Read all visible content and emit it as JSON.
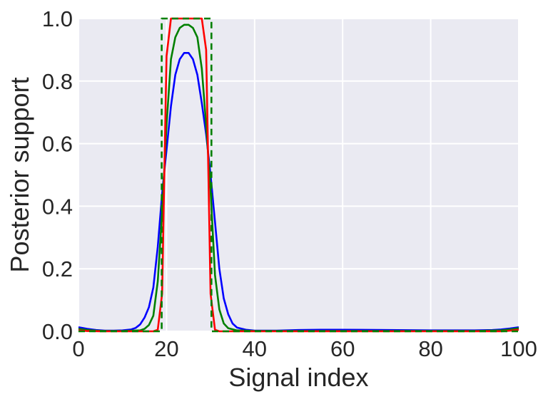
{
  "chart_data": {
    "type": "line",
    "title": "",
    "xlabel": "Signal index",
    "ylabel": "Posterior support",
    "xlim": [
      0,
      100
    ],
    "ylim": [
      0,
      1.0
    ],
    "x_ticks": [
      "0",
      "20",
      "40",
      "60",
      "80",
      "100"
    ],
    "y_ticks": [
      "0.0",
      "0.2",
      "0.4",
      "0.6",
      "0.8",
      "1.0"
    ],
    "grid": true,
    "background": "#eaeaf2",
    "grid_color": "#ffffff",
    "series": [
      {
        "color": "#0000ff",
        "style": "solid",
        "x": [
          0,
          2,
          4,
          6,
          8,
          10,
          12,
          13,
          14,
          15,
          16,
          17,
          18,
          19,
          20,
          21,
          22,
          23,
          24,
          25,
          26,
          27,
          28,
          29,
          30,
          31,
          32,
          33,
          34,
          35,
          36,
          38,
          40,
          45,
          50,
          55,
          60,
          70,
          80,
          90,
          94,
          96,
          98,
          100
        ],
        "y": [
          0.013,
          0.008,
          0.004,
          0.002,
          0.002,
          0.003,
          0.006,
          0.011,
          0.022,
          0.044,
          0.077,
          0.14,
          0.27,
          0.44,
          0.58,
          0.72,
          0.82,
          0.87,
          0.89,
          0.89,
          0.87,
          0.82,
          0.73,
          0.63,
          0.5,
          0.35,
          0.2,
          0.105,
          0.055,
          0.025,
          0.012,
          0.005,
          0.002,
          0.002,
          0.004,
          0.005,
          0.005,
          0.004,
          0.003,
          0.003,
          0.004,
          0.006,
          0.009,
          0.013
        ]
      },
      {
        "color": "#008000",
        "style": "solid",
        "x": [
          0,
          2,
          4,
          6,
          8,
          10,
          14,
          15,
          16,
          17,
          18,
          19,
          20,
          21,
          22,
          23,
          24,
          25,
          26,
          27,
          28,
          29,
          30,
          31,
          32,
          33,
          34,
          36,
          40,
          50,
          60,
          70,
          80,
          90,
          96,
          98,
          100
        ],
        "y": [
          0.008,
          0.004,
          0.002,
          0.001,
          0.001,
          0.001,
          0.003,
          0.008,
          0.02,
          0.05,
          0.16,
          0.38,
          0.66,
          0.87,
          0.94,
          0.97,
          0.98,
          0.98,
          0.97,
          0.94,
          0.84,
          0.66,
          0.45,
          0.18,
          0.07,
          0.025,
          0.01,
          0.003,
          0.001,
          0.001,
          0.001,
          0.001,
          0.001,
          0.001,
          0.003,
          0.006,
          0.01
        ]
      },
      {
        "color": "#ff0000",
        "style": "solid",
        "x": [
          0,
          2,
          5,
          10,
          15,
          17,
          18,
          19,
          20,
          21,
          22,
          23,
          24,
          25,
          26,
          27,
          28,
          29,
          30,
          31,
          32,
          33,
          35,
          40,
          50,
          60,
          70,
          80,
          90,
          96,
          98,
          100
        ],
        "y": [
          0.003,
          0.001,
          0.0,
          0.0,
          0.0,
          0.0,
          0.005,
          0.12,
          0.88,
          1.0,
          1.0,
          1.0,
          1.0,
          1.0,
          1.0,
          1.0,
          1.0,
          0.9,
          0.12,
          0.005,
          0.0,
          0.0,
          0.0,
          0.0,
          0.0,
          0.0,
          0.0,
          0.0,
          0.0,
          0.0,
          0.002,
          0.005
        ]
      },
      {
        "color": "#008000",
        "style": "dashed",
        "x": [
          0,
          18.9,
          18.9,
          19.9,
          19.9,
          29,
          29,
          30.2,
          30.2,
          100
        ],
        "y": [
          0.0,
          0.0,
          1.0,
          1.0,
          1.0,
          1.0,
          1.0,
          1.0,
          0.0,
          0.0
        ]
      }
    ]
  }
}
